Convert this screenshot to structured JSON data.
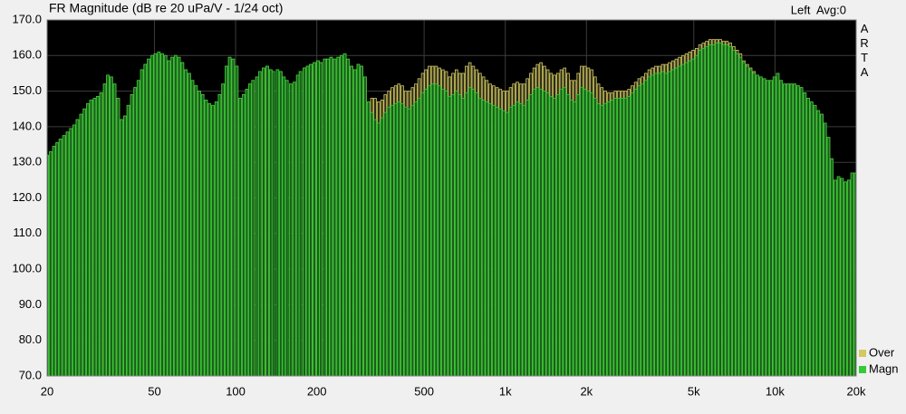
{
  "chart_data": {
    "type": "bar",
    "title": "FR Magnitude (dB re 20 uPa/V - 1/24 oct)",
    "channel_label": "Left  Avg:0",
    "brand": "ARTA",
    "x_scale": "log",
    "grid": true,
    "legend": "lower right",
    "xlim": [
      20,
      20000
    ],
    "xticks": [
      20,
      50,
      100,
      200,
      500,
      {
        "value": 1000,
        "label": "1k"
      },
      {
        "value": 2000,
        "label": "2k"
      },
      {
        "value": 5000,
        "label": "5k"
      },
      {
        "value": 10000,
        "label": "10k"
      },
      {
        "value": 20000,
        "label": "20k"
      }
    ],
    "ylim": [
      70,
      170
    ],
    "yticks": [
      {
        "value": 70,
        "label": "70.0"
      },
      {
        "value": 80,
        "label": "80.0"
      },
      {
        "value": 90,
        "label": "90.0"
      },
      {
        "value": 100,
        "label": "100.0"
      },
      {
        "value": 110,
        "label": "110.0"
      },
      {
        "value": 120,
        "label": "120.0"
      },
      {
        "value": 130,
        "label": "130.0"
      },
      {
        "value": 140,
        "label": "140.0"
      },
      {
        "value": 150,
        "label": "150.0"
      },
      {
        "value": 160,
        "label": "160.0"
      },
      {
        "value": 170,
        "label": "170.0"
      }
    ],
    "x": [
      20,
      20.6,
      21.2,
      21.8,
      22.4,
      23.1,
      23.8,
      24.5,
      25.2,
      25.9,
      26.7,
      27.5,
      28.3,
      29.1,
      30,
      30.8,
      31.7,
      32.7,
      33.6,
      34.6,
      35.6,
      36.7,
      37.8,
      38.9,
      40,
      41.2,
      42.4,
      43.6,
      44.9,
      46.2,
      47.6,
      49,
      50.4,
      51.9,
      53.4,
      55,
      56.6,
      58.2,
      59.9,
      61.7,
      63.5,
      65.4,
      67.3,
      69.2,
      71.3,
      73.4,
      75.5,
      77.7,
      80,
      82.3,
      84.8,
      87.2,
      89.8,
      92.4,
      95.1,
      97.9,
      101,
      104,
      107,
      110,
      113,
      116,
      120,
      123,
      127,
      131,
      135,
      138,
      143,
      147,
      151,
      155,
      160,
      165,
      170,
      174,
      180,
      185,
      190,
      196,
      202,
      207,
      214,
      220,
      226,
      233,
      240,
      247,
      254,
      261,
      269,
      277,
      285,
      293,
      302,
      311,
      320,
      329,
      339,
      349,
      359,
      370,
      381,
      392,
      403,
      415,
      427,
      440,
      453,
      466,
      479,
      494,
      508,
      523,
      538,
      554,
      570,
      587,
      604,
      622,
      640,
      659,
      678,
      698,
      718,
      739,
      761,
      783,
      806,
      830,
      854,
      879,
      905,
      932,
      959,
      987,
      1016,
      1046,
      1076,
      1108,
      1140,
      1174,
      1208,
      1244,
      1280,
      1317,
      1356,
      1396,
      1437,
      1479,
      1522,
      1567,
      1613,
      1660,
      1709,
      1759,
      1810,
      1864,
      1918,
      1974,
      2032,
      2091,
      2153,
      2216,
      2281,
      2348,
      2416,
      2487,
      2560,
      2635,
      2712,
      2792,
      2874,
      2958,
      3044,
      3134,
      3225,
      3320,
      3417,
      3517,
      3620,
      3727,
      3836,
      3948,
      4064,
      4183,
      4305,
      4432,
      4561,
      4695,
      4833,
      4974,
      5120,
      5270,
      5425,
      5584,
      5747,
      5916,
      6089,
      6267,
      6451,
      6640,
      6834,
      7035,
      7241,
      7453,
      7672,
      7897,
      8127,
      8366,
      8611,
      8863,
      9123,
      9390,
      9665,
      9949,
      10240,
      10540,
      10849,
      11167,
      11495,
      11832,
      12178,
      12535,
      12902,
      13280,
      13669,
      14070,
      14482,
      14906,
      15343,
      15793,
      16255,
      16732,
      17222,
      17727,
      18246,
      18781,
      19331,
      19898
    ],
    "series": [
      {
        "name": "Over",
        "color": "#d4c860",
        "values": [
          132,
          133,
          134.5,
          135.5,
          136.5,
          137.5,
          138.5,
          139.5,
          140.5,
          142,
          143.5,
          145,
          146.5,
          147.5,
          148,
          148.5,
          149.5,
          152,
          154.5,
          154,
          152,
          148,
          142,
          143,
          146,
          149,
          151,
          153,
          156,
          157.5,
          159,
          160,
          160.5,
          161,
          160.5,
          160,
          158.5,
          159.5,
          160,
          159.5,
          158,
          156,
          155,
          153,
          151.5,
          150,
          149,
          147.5,
          146.5,
          146,
          147,
          149,
          152,
          157,
          159.5,
          159,
          157,
          148,
          149,
          150.5,
          152,
          153,
          154,
          155.5,
          156.5,
          157,
          156,
          155.5,
          156,
          155.5,
          154,
          153,
          152,
          152.5,
          154.5,
          155.5,
          156.5,
          157,
          157.5,
          158,
          158.5,
          158,
          159,
          159,
          159.5,
          159,
          159.5,
          160,
          160.5,
          159,
          157,
          156,
          157.5,
          157,
          154,
          147,
          148,
          148,
          147,
          147.5,
          149,
          150,
          151,
          151.5,
          152,
          151.5,
          150,
          150,
          151,
          152,
          153.5,
          155,
          156,
          157,
          157,
          157,
          156.5,
          156,
          155.5,
          154,
          155,
          156,
          155,
          155,
          157,
          158,
          157,
          156,
          155,
          154,
          153,
          152,
          151.5,
          151,
          150.5,
          150,
          150,
          151,
          152,
          152.5,
          152,
          152,
          153.5,
          155,
          156.5,
          157.5,
          158,
          157,
          156,
          155,
          154.5,
          155,
          156,
          156.5,
          155,
          153,
          153,
          155,
          157,
          157,
          156.5,
          156,
          154,
          152,
          151,
          150,
          149.5,
          149.5,
          150,
          150,
          150,
          150,
          150.5,
          151.5,
          152.5,
          153.5,
          154,
          155,
          156,
          156.5,
          157,
          157,
          157.5,
          157.5,
          158,
          158.5,
          159,
          159.5,
          160,
          160.5,
          161,
          161.5,
          162,
          163,
          163.5,
          164,
          164.5,
          164.5,
          164.5,
          164.5,
          164,
          164,
          163.5,
          162.5,
          161.5,
          160.5,
          158.5,
          157.5,
          156.5,
          155.5,
          154.5,
          154,
          153.5,
          153,
          153,
          154,
          155,
          153,
          152,
          152,
          152,
          152,
          151.5,
          151,
          149.5,
          148,
          147,
          146,
          144.5,
          143.5,
          141,
          137,
          131,
          125,
          126,
          125.5,
          124.5,
          125,
          127,
          127
        ]
      },
      {
        "name": "Magn",
        "color": "#33cc33",
        "values": [
          132,
          133,
          134.5,
          135.5,
          136.5,
          137.5,
          138.5,
          139.5,
          140.5,
          142,
          143.5,
          145,
          146.5,
          147.5,
          148,
          148.5,
          149.5,
          152,
          154.5,
          154,
          152,
          148,
          142,
          143,
          146,
          149,
          151,
          153,
          156,
          157.5,
          159,
          160,
          160.5,
          161,
          160.5,
          160,
          158.5,
          159.5,
          160,
          159.5,
          158,
          156,
          155,
          153,
          151.5,
          150,
          149,
          147.5,
          146.5,
          146,
          147,
          149,
          152,
          157,
          159.5,
          159,
          157,
          148,
          149,
          150.5,
          152,
          153,
          154,
          155.5,
          156.5,
          157,
          156,
          155.5,
          156,
          155.5,
          154,
          153,
          152,
          152.5,
          154.5,
          155.5,
          156.5,
          157,
          157.5,
          158,
          158.5,
          158,
          159,
          159,
          159.5,
          159,
          159.5,
          160,
          160.5,
          159,
          157,
          156,
          157.5,
          157,
          154,
          147,
          144,
          142,
          141,
          142.5,
          144,
          145.5,
          146,
          146.5,
          147,
          146.5,
          145.5,
          145,
          146,
          147,
          148,
          149.5,
          150.5,
          151.5,
          152,
          152,
          151.5,
          150.5,
          150,
          148.5,
          149,
          150,
          149,
          148,
          149.5,
          151,
          150.5,
          149.5,
          148,
          147.5,
          147,
          146.5,
          146,
          145.5,
          145,
          144.5,
          144,
          145.5,
          146,
          147,
          146.5,
          146,
          147.5,
          149,
          150.5,
          151,
          150.5,
          150,
          149.5,
          148.5,
          148,
          149,
          150.5,
          151,
          149,
          147.5,
          147,
          149,
          151,
          150.5,
          150,
          149.5,
          148,
          146.5,
          146,
          146.5,
          147,
          147.5,
          148,
          148,
          148,
          148,
          148.5,
          149.5,
          150.5,
          151.5,
          152,
          153,
          154,
          154.5,
          155,
          155,
          155.5,
          155,
          155.5,
          156,
          156.5,
          157,
          157.5,
          158,
          158.5,
          159,
          160,
          161.5,
          162,
          162.5,
          163,
          163,
          163.5,
          163.5,
          163,
          163,
          162.5,
          161.5,
          160.5,
          159.5,
          158,
          157,
          156,
          155,
          154.5,
          154,
          153.5,
          153,
          153,
          154,
          155,
          153,
          152,
          152,
          152,
          152,
          151.5,
          151,
          149.5,
          148,
          147,
          146,
          144.5,
          143.5,
          141,
          137,
          131,
          125,
          126,
          125.5,
          124.5,
          125,
          127,
          127
        ]
      }
    ]
  }
}
